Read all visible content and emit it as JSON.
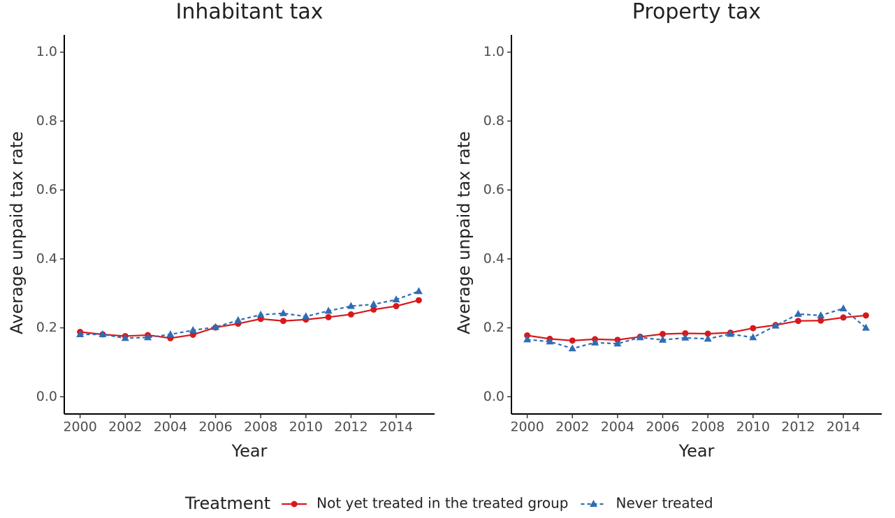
{
  "chart_data": [
    {
      "type": "line",
      "title": "Inhabitant tax",
      "x_label": "Year",
      "y_label": "Average unpaid tax rate",
      "legend_title": "Treatment",
      "x": [
        2000,
        2001,
        2002,
        2003,
        2004,
        2005,
        2006,
        2007,
        2008,
        2009,
        2010,
        2011,
        2012,
        2013,
        2014,
        2015
      ],
      "series": [
        {
          "name": "Not yet treated in the treated group",
          "color": "#d7191c",
          "marker": "circle",
          "dash": "solid",
          "values": [
            0.188,
            0.181,
            0.176,
            0.179,
            0.17,
            0.18,
            0.201,
            0.212,
            0.226,
            0.22,
            0.224,
            0.231,
            0.239,
            0.253,
            0.263,
            0.28
          ]
        },
        {
          "name": "Never treated",
          "color": "#2f6db3",
          "marker": "triangle",
          "dash": "dashed",
          "values": [
            0.181,
            0.181,
            0.17,
            0.172,
            0.181,
            0.193,
            0.202,
            0.222,
            0.238,
            0.242,
            0.233,
            0.249,
            0.263,
            0.268,
            0.282,
            0.306
          ]
        }
      ],
      "xlim": [
        1999.3,
        2015.7
      ],
      "ylim": [
        -0.05,
        1.05
      ],
      "xticks": [
        2000,
        2002,
        2004,
        2006,
        2008,
        2010,
        2012,
        2014
      ],
      "yticks": [
        {
          "value": 0,
          "label": "0.0"
        },
        0.2,
        0.4,
        0.6,
        0.8,
        {
          "value": 1,
          "label": "1.0"
        }
      ]
    },
    {
      "type": "line",
      "title": "Property tax",
      "x_label": "Year",
      "y_label": "Average unpaid tax rate",
      "x": [
        2000,
        2001,
        2002,
        2003,
        2004,
        2005,
        2006,
        2007,
        2008,
        2009,
        2010,
        2011,
        2012,
        2013,
        2014,
        2015
      ],
      "series": [
        {
          "name": "Not yet treated in the treated group",
          "color": "#d7191c",
          "marker": "circle",
          "dash": "solid",
          "values": [
            0.178,
            0.168,
            0.163,
            0.167,
            0.165,
            0.174,
            0.182,
            0.184,
            0.183,
            0.186,
            0.199,
            0.208,
            0.22,
            0.221,
            0.23,
            0.236
          ]
        },
        {
          "name": "Never treated",
          "color": "#2f6db3",
          "marker": "triangle",
          "dash": "dashed",
          "values": [
            0.166,
            0.16,
            0.14,
            0.157,
            0.154,
            0.172,
            0.165,
            0.171,
            0.168,
            0.182,
            0.172,
            0.206,
            0.24,
            0.236,
            0.256,
            0.2
          ]
        }
      ],
      "xlim": [
        1999.3,
        2015.7
      ],
      "ylim": [
        -0.05,
        1.05
      ],
      "xticks": [
        2000,
        2002,
        2004,
        2006,
        2008,
        2010,
        2012,
        2014
      ],
      "yticks": [
        {
          "value": 0,
          "label": "0.0"
        },
        0.2,
        0.4,
        0.6,
        0.8,
        {
          "value": 1,
          "label": "1.0"
        }
      ]
    }
  ]
}
